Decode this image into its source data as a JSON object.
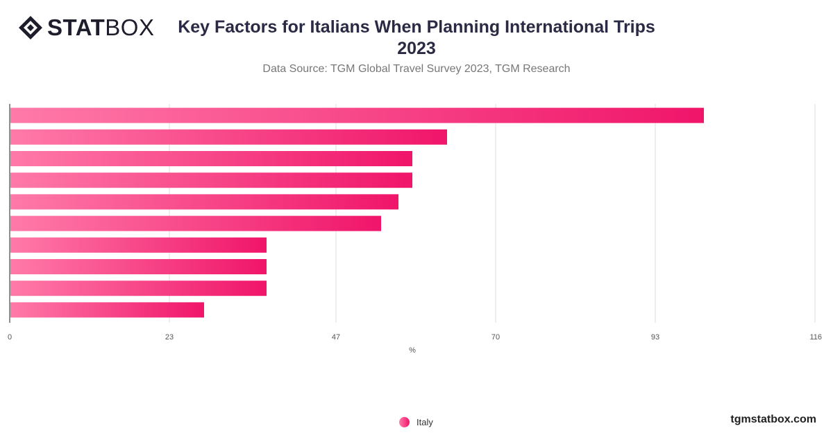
{
  "brand": {
    "bold": "STAT",
    "light": "BOX"
  },
  "header": {
    "title": "Key Factors for Italians When Planning International Trips 2023",
    "subtitle": "Data Source: TGM Global Travel Survey 2023, TGM Research"
  },
  "footer": {
    "site": "tgmstatbox.com"
  },
  "colors": {
    "bar_start": "#ff7aa8",
    "bar_end": "#f0156a",
    "grid": "#dddddd",
    "axis": "#222222"
  },
  "chart_data": {
    "type": "bar",
    "orientation": "horizontal",
    "categories": [
      "",
      "",
      "",
      "",
      "",
      "",
      "",
      "",
      "",
      ""
    ],
    "series": [
      {
        "name": "Italy",
        "values": [
          100,
          63,
          58,
          58,
          56,
          53.5,
          37,
          37,
          37,
          28
        ]
      }
    ],
    "xlabel": "%",
    "xlim": [
      0,
      116
    ],
    "xticks": [
      "0",
      "23",
      "47",
      "70",
      "93",
      "116"
    ],
    "grid": true,
    "legend": "bottom-center"
  }
}
